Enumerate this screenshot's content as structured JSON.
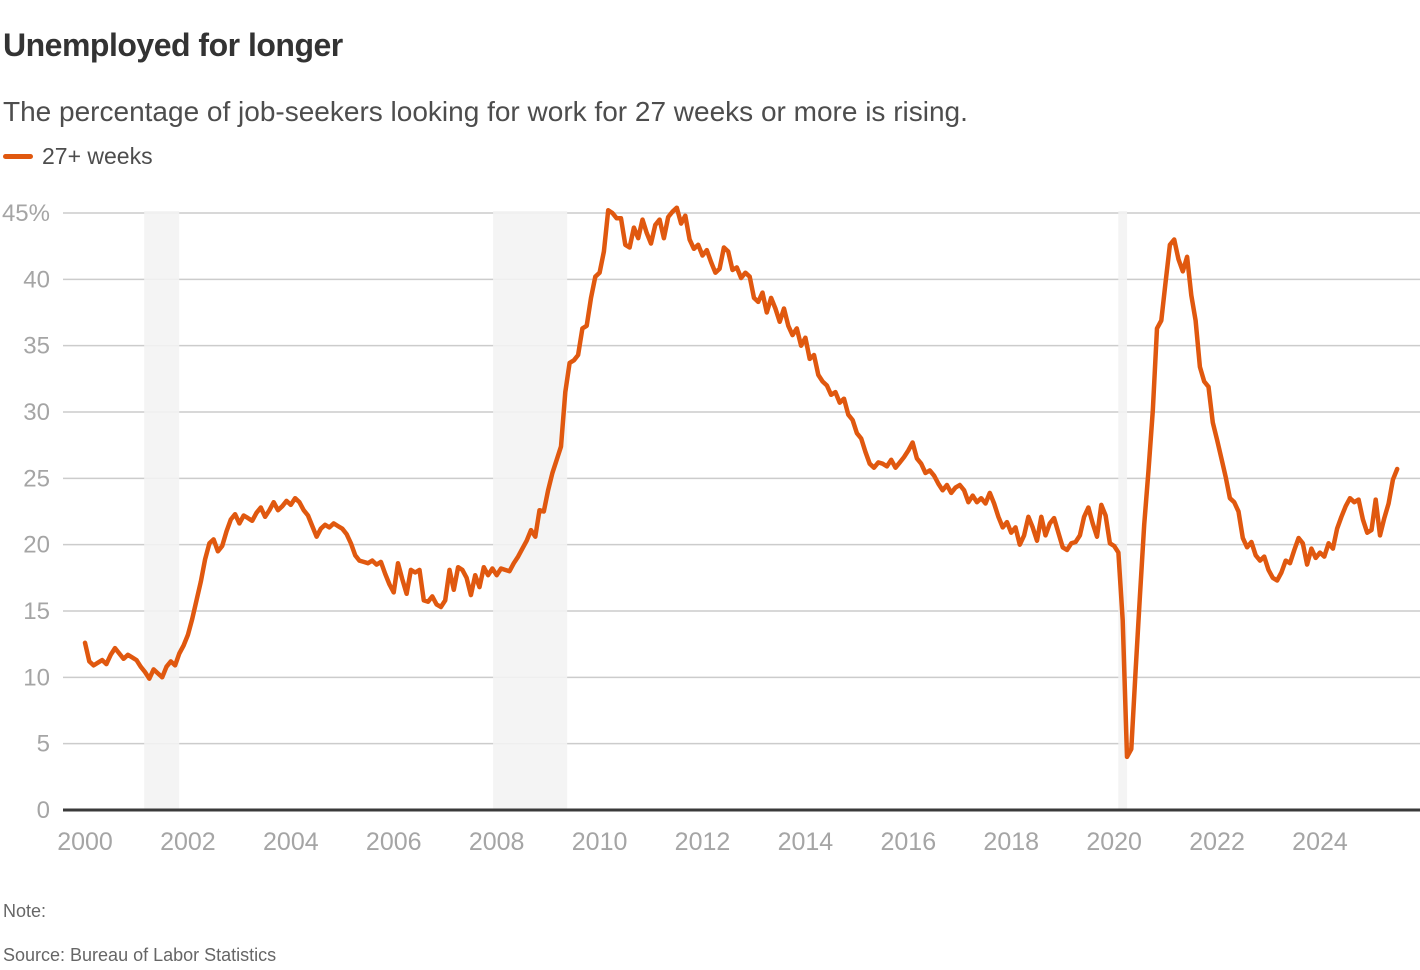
{
  "header": {
    "title": "Unemployed for longer",
    "subtitle": "The percentage of job-seekers looking for work for 27 weeks or more is rising."
  },
  "footer": {
    "note_label": "Note:",
    "source": "Source: Bureau of Labor Statistics"
  },
  "chart_data": {
    "type": "line",
    "title": "Unemployed for longer",
    "subtitle": "The percentage of job-seekers looking for work for 27 weeks or more is rising.",
    "unit": "%",
    "grid": "horizontal-only",
    "legend_position": "top-left",
    "x_range": [
      2000,
      2025.95
    ],
    "y_range": [
      0,
      45
    ],
    "x_ticks": [
      2000,
      2002,
      2004,
      2006,
      2008,
      2010,
      2012,
      2014,
      2016,
      2018,
      2020,
      2022,
      2024
    ],
    "y_ticks": [
      0,
      5,
      10,
      15,
      20,
      25,
      30,
      35,
      40,
      45
    ],
    "y_tick_labels": [
      "0",
      "5",
      "10",
      "15",
      "20",
      "25",
      "30",
      "35",
      "40",
      "45%"
    ],
    "shaded_regions": [
      {
        "name": "recession-2001",
        "start": 2001.15,
        "end": 2001.83
      },
      {
        "name": "recession-2008",
        "start": 2007.93,
        "end": 2009.37
      },
      {
        "name": "recession-2020",
        "start": 2020.08,
        "end": 2020.25
      }
    ],
    "colors": {
      "line": "#E0580F",
      "gridline": "#CCCCCC",
      "axis_line": "#3A3A3A",
      "tick_label": "#A5A5A5",
      "shaded_region": "#F2F2F2"
    },
    "series": [
      {
        "name": "27+ weeks",
        "color": "#E0580F",
        "start": "2000-01",
        "frequency": "monthly",
        "values": [
          12.6,
          11.2,
          10.9,
          11.1,
          11.3,
          11.0,
          11.7,
          12.2,
          11.8,
          11.4,
          11.7,
          11.5,
          11.3,
          10.8,
          10.4,
          9.9,
          10.6,
          10.3,
          10.0,
          10.8,
          11.2,
          10.9,
          11.8,
          12.4,
          13.2,
          14.4,
          15.8,
          17.2,
          18.9,
          20.1,
          20.4,
          19.5,
          19.9,
          21.0,
          21.9,
          22.3,
          21.6,
          22.2,
          22.0,
          21.8,
          22.4,
          22.8,
          22.1,
          22.6,
          23.2,
          22.6,
          22.9,
          23.3,
          23.0,
          23.5,
          23.2,
          22.6,
          22.2,
          21.4,
          20.6,
          21.2,
          21.5,
          21.3,
          21.6,
          21.4,
          21.2,
          20.8,
          20.1,
          19.2,
          18.8,
          18.7,
          18.6,
          18.8,
          18.5,
          18.7,
          17.8,
          17.0,
          16.4,
          18.6,
          17.4,
          16.3,
          18.1,
          17.9,
          18.1,
          15.8,
          15.7,
          16.1,
          15.5,
          15.3,
          15.8,
          18.1,
          16.6,
          18.3,
          18.1,
          17.5,
          16.2,
          17.7,
          16.8,
          18.3,
          17.7,
          18.2,
          17.7,
          18.2,
          18.1,
          18.0,
          18.6,
          19.1,
          19.7,
          20.3,
          21.1,
          20.6,
          22.6,
          22.5,
          24.1,
          25.4,
          26.4,
          27.4,
          31.5,
          33.7,
          33.9,
          34.3,
          36.3,
          36.5,
          38.6,
          40.2,
          40.5,
          42.1,
          45.2,
          45.0,
          44.6,
          44.6,
          42.6,
          42.4,
          43.9,
          43.1,
          44.5,
          43.5,
          42.7,
          44.1,
          44.5,
          43.1,
          44.7,
          45.1,
          45.4,
          44.2,
          44.8,
          43.0,
          42.3,
          42.6,
          41.8,
          42.2,
          41.3,
          40.5,
          40.8,
          42.4,
          42.1,
          40.7,
          40.9,
          40.1,
          40.5,
          40.2,
          38.6,
          38.3,
          39.0,
          37.5,
          38.6,
          37.8,
          36.8,
          37.8,
          36.5,
          35.8,
          36.3,
          35.0,
          35.6,
          34.0,
          34.3,
          32.8,
          32.3,
          32.0,
          31.3,
          31.5,
          30.7,
          31.0,
          29.8,
          29.4,
          28.4,
          28.0,
          27.0,
          26.1,
          25.8,
          26.2,
          26.1,
          25.9,
          26.4,
          25.8,
          26.2,
          26.6,
          27.1,
          27.7,
          26.5,
          26.1,
          25.4,
          25.6,
          25.2,
          24.6,
          24.1,
          24.5,
          23.9,
          24.3,
          24.5,
          24.1,
          23.2,
          23.7,
          23.2,
          23.5,
          23.1,
          23.9,
          23.1,
          22.1,
          21.3,
          21.7,
          20.9,
          21.3,
          20.0,
          20.7,
          22.1,
          21.3,
          20.3,
          22.1,
          20.7,
          21.6,
          22.0,
          20.9,
          19.8,
          19.6,
          20.1,
          20.2,
          20.7,
          22.1,
          22.8,
          21.6,
          20.6,
          23.0,
          22.2,
          20.1,
          19.9,
          19.4,
          14.3,
          4.0,
          4.6,
          10.5,
          16.1,
          21.5,
          25.6,
          30.1,
          36.3,
          36.9,
          39.8,
          42.6,
          43.0,
          41.5,
          40.6,
          41.7,
          38.8,
          36.9,
          33.4,
          32.3,
          31.9,
          29.2,
          27.9,
          26.5,
          25.1,
          23.5,
          23.2,
          22.5,
          20.5,
          19.8,
          20.2,
          19.2,
          18.8,
          19.1,
          18.1,
          17.5,
          17.3,
          17.9,
          18.8,
          18.6,
          19.6,
          20.5,
          20.1,
          18.5,
          19.7,
          19.0,
          19.4,
          19.1,
          20.1,
          19.7,
          21.2,
          22.1,
          22.9,
          23.5,
          23.2,
          23.4,
          21.9,
          20.9,
          21.1,
          23.4,
          20.7,
          22.0,
          23.1,
          24.9,
          25.7
        ]
      }
    ]
  }
}
